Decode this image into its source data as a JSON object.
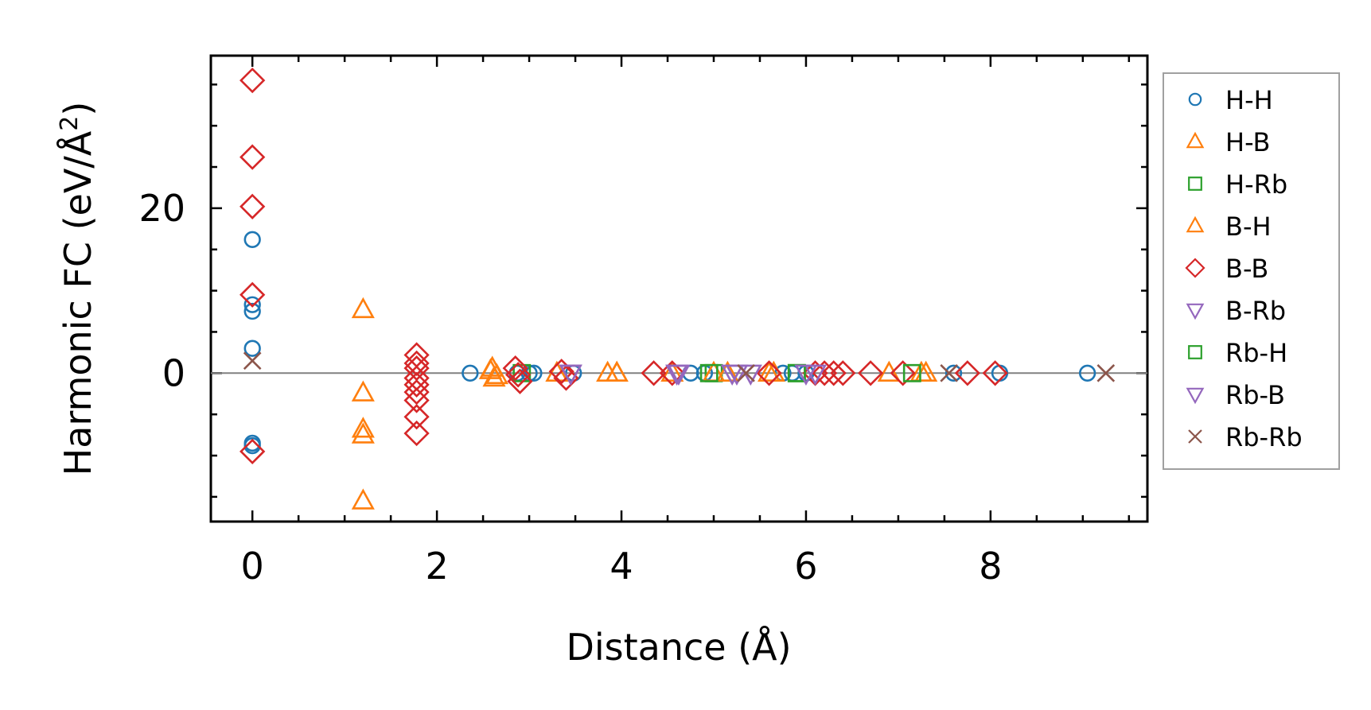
{
  "chart_data": {
    "type": "scatter",
    "xlabel": "Distance (Å)",
    "ylabel_main": "Harmonic FC (eV/Å",
    "ylabel_sup": "2",
    "ylabel_close": ")",
    "xlim": [
      -0.45,
      9.7
    ],
    "ylim": [
      -18,
      38.5
    ],
    "xticks": [
      0,
      2,
      4,
      6,
      8
    ],
    "xtick_labels": [
      "0",
      "2",
      "4",
      "6",
      "8"
    ],
    "yticks": [
      0,
      20
    ],
    "ytick_labels": [
      "0",
      "20"
    ],
    "x_minor_step": 0.5,
    "y_minor_step": 5,
    "zero_line": true,
    "grid": false,
    "legend_position": "outside-right",
    "series": [
      {
        "name": "H-H",
        "marker": "circle",
        "color": "#1f77b4",
        "x": [
          0,
          0,
          0,
          0,
          0,
          0,
          2.36,
          2.87,
          3.0,
          3.05,
          3.48,
          4.75,
          4.9,
          5.75,
          5.85,
          6.0,
          7.6,
          8.1,
          9.05
        ],
        "y": [
          16.2,
          8.3,
          7.5,
          3.0,
          -8.5,
          -8.8,
          0,
          0,
          0,
          0,
          0,
          0,
          0,
          0,
          0,
          0,
          0,
          0,
          0
        ]
      },
      {
        "name": "H-B",
        "marker": "triangle-up",
        "color": "#ff7f0e",
        "x": [
          1.2,
          1.2,
          1.2,
          1.2,
          1.2,
          2.6,
          2.62,
          3.3,
          3.85,
          3.95,
          5.6,
          7.3
        ],
        "y": [
          7.7,
          -2.4,
          -6.8,
          -7.5,
          -15.5,
          0.6,
          -0.6,
          0,
          0,
          0,
          0,
          0
        ]
      },
      {
        "name": "H-Rb",
        "marker": "square",
        "color": "#2ca02c",
        "x": [
          2.92,
          5.0,
          5.9
        ],
        "y": [
          0,
          0,
          0
        ]
      },
      {
        "name": "B-H",
        "marker": "triangle-up",
        "color": "#ff7f0e",
        "x": [
          2.58,
          2.65,
          3.95,
          4.55,
          5.0,
          5.15,
          5.65,
          6.9,
          7.25
        ],
        "y": [
          0.3,
          -0.3,
          0,
          0,
          0,
          0,
          0,
          0,
          0
        ]
      },
      {
        "name": "B-B",
        "marker": "diamond",
        "color": "#d62728",
        "x": [
          0,
          0,
          0,
          0,
          0,
          1.78,
          1.78,
          1.78,
          1.78,
          1.78,
          1.78,
          1.78,
          1.78,
          1.78,
          2.85,
          2.88,
          2.9,
          3.35,
          3.4,
          4.35,
          4.55,
          5.6,
          6.1,
          6.2,
          6.3,
          6.4,
          6.7,
          7.05,
          7.75,
          8.05
        ],
        "y": [
          35.5,
          26.2,
          20.2,
          9.5,
          -9.5,
          2.2,
          1.2,
          0.6,
          -0.6,
          -1.4,
          -2.3,
          -3.3,
          -5.3,
          -7.3,
          0.6,
          -0.2,
          -1.0,
          0.2,
          -0.6,
          0,
          0,
          0,
          0,
          0,
          0,
          0,
          0,
          0,
          0,
          0
        ]
      },
      {
        "name": "B-Rb",
        "marker": "triangle-down",
        "color": "#9467bd",
        "x": [
          3.45,
          4.62,
          5.2,
          6.1
        ],
        "y": [
          0,
          0,
          0,
          0
        ]
      },
      {
        "name": "Rb-H",
        "marker": "square",
        "color": "#2ca02c",
        "x": [
          4.95,
          5.9,
          7.15
        ],
        "y": [
          0,
          0,
          0
        ]
      },
      {
        "name": "Rb-B",
        "marker": "triangle-down",
        "color": "#9467bd",
        "x": [
          3.45,
          4.6,
          5.25,
          5.4,
          6.0
        ],
        "y": [
          0,
          0,
          0,
          0,
          0
        ]
      },
      {
        "name": "Rb-Rb",
        "marker": "x",
        "color": "#8c564b",
        "x": [
          0,
          5.35,
          7.55,
          9.25
        ],
        "y": [
          1.5,
          0,
          0,
          0
        ]
      }
    ]
  }
}
